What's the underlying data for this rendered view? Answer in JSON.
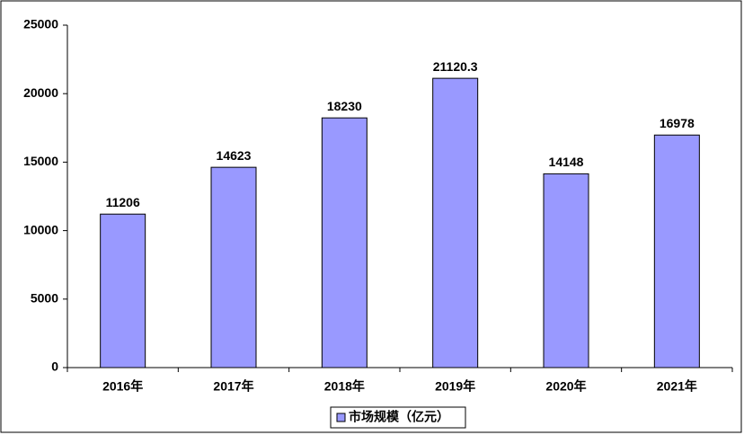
{
  "chart_data": {
    "type": "bar",
    "categories": [
      "2016年",
      "2017年",
      "2018年",
      "2019年",
      "2020年",
      "2021年"
    ],
    "series": [
      {
        "name": "市场规模（亿元）",
        "color": "#9999ff",
        "values": [
          11206,
          14623,
          18230,
          21120.3,
          14148,
          16978
        ]
      }
    ],
    "ylim": [
      0,
      25000
    ],
    "yticks": [
      0,
      5000,
      10000,
      15000,
      20000,
      25000
    ],
    "grid": false,
    "legend": "bottom",
    "data_labels": true
  }
}
